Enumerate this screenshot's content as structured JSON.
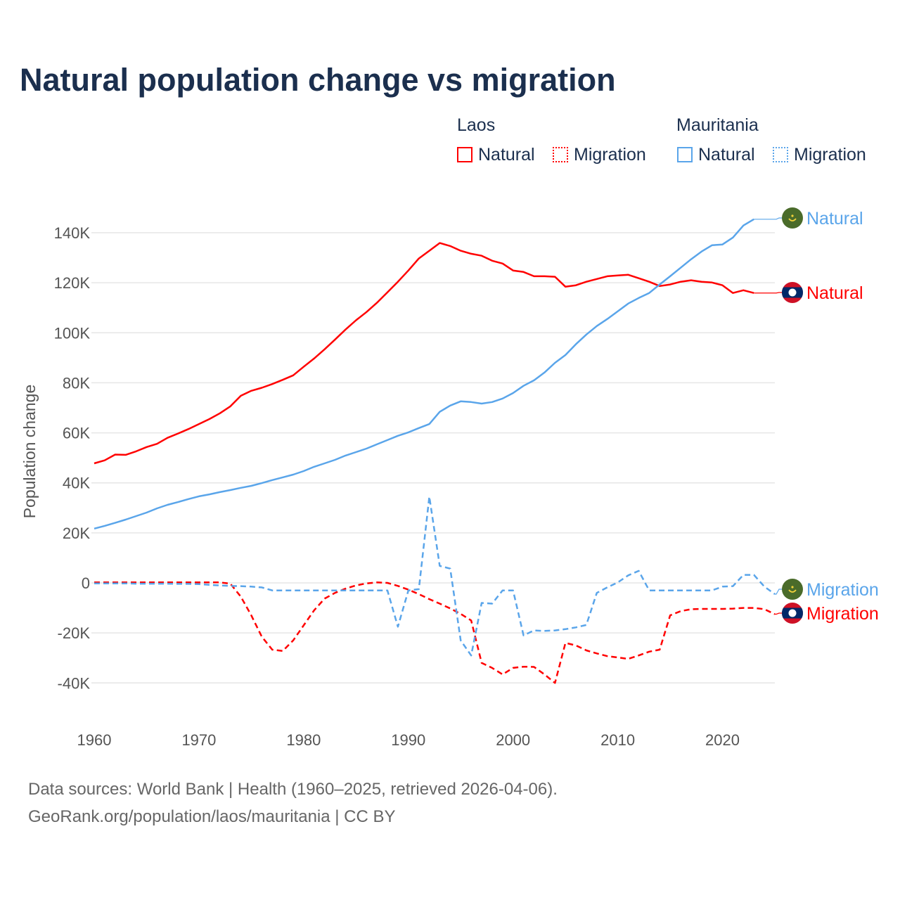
{
  "title": "Natural population change vs migration",
  "legend": {
    "groups": [
      {
        "country": "Laos",
        "color": "#ff0000",
        "items": [
          "Natural",
          "Migration"
        ]
      },
      {
        "country": "Mauritania",
        "color": "#5aa5ea",
        "items": [
          "Natural",
          "Migration"
        ]
      }
    ]
  },
  "footer": {
    "line1": "Data sources: World Bank | Health (1960–2025, retrieved 2026-04-06).",
    "line2": "GeoRank.org/population/laos/mauritania | CC BY"
  },
  "chart_data": {
    "type": "line",
    "title": "Natural population change vs migration",
    "xlabel": "",
    "ylabel": "Population change",
    "xlim": [
      1960,
      2025
    ],
    "ylim": [
      -40000,
      140000
    ],
    "x_ticks": [
      "1960",
      "1970",
      "1980",
      "1990",
      "2000",
      "2010",
      "2020"
    ],
    "y_ticks": [
      "140K",
      "120K",
      "100K",
      "80K",
      "60K",
      "40K",
      "20K",
      "0",
      "-20K",
      "-40K"
    ],
    "y_tick_values": [
      140000,
      120000,
      100000,
      80000,
      60000,
      40000,
      20000,
      0,
      -20000,
      -40000
    ],
    "grid": true,
    "series": [
      {
        "name": "Laos Natural",
        "country": "Laos",
        "kind": "Natural",
        "color": "#ff0000",
        "dash": false,
        "end_label": "Natural",
        "start": 1960,
        "values": [
          47800,
          49000,
          51300,
          51200,
          52600,
          54300,
          55600,
          58000,
          59700,
          61500,
          63500,
          65500,
          67800,
          70600,
          74800,
          76800,
          78000,
          79500,
          81200,
          83000,
          86400,
          89700,
          93400,
          97300,
          101300,
          105000,
          108300,
          112000,
          116200,
          120400,
          124900,
          129700,
          132800,
          135900,
          134700,
          132800,
          131600,
          130800,
          128800,
          127700,
          124900,
          124300,
          122600,
          122600,
          122400,
          118400,
          119000,
          120400,
          121500,
          122600,
          122900,
          123200,
          121800,
          120400,
          118700,
          119300,
          120400,
          121000,
          120400,
          120100,
          119000,
          115900,
          117000,
          115900
        ]
      },
      {
        "name": "Laos Migration",
        "country": "Laos",
        "kind": "Migration",
        "color": "#ff0000",
        "dash": true,
        "end_label": "Migration",
        "start": 1960,
        "values": [
          200,
          200,
          200,
          200,
          200,
          200,
          200,
          200,
          200,
          200,
          200,
          200,
          200,
          -300,
          -5500,
          -13000,
          -21500,
          -26700,
          -27200,
          -23000,
          -17000,
          -11000,
          -6300,
          -4000,
          -2300,
          -1000,
          -200,
          200,
          0,
          -1200,
          -2700,
          -4500,
          -6500,
          -8300,
          -10200,
          -12400,
          -15000,
          -32000,
          -34000,
          -36600,
          -34000,
          -33500,
          -33600,
          -36600,
          -40000,
          -24000,
          -25000,
          -27000,
          -28200,
          -29300,
          -29800,
          -30400,
          -29000,
          -27500,
          -26700,
          -13000,
          -11300,
          -10500,
          -10400,
          -10400,
          -10400,
          -10300,
          -10000,
          -10000,
          -10500,
          -12500
        ]
      },
      {
        "name": "Mauritania Natural",
        "country": "Mauritania",
        "kind": "Natural",
        "color": "#5aa5ea",
        "dash": false,
        "end_label": "Natural",
        "start": 1960,
        "values": [
          21700,
          22800,
          24000,
          25300,
          26700,
          28100,
          29800,
          31200,
          32300,
          33500,
          34600,
          35400,
          36300,
          37100,
          38000,
          38800,
          39900,
          41100,
          42200,
          43300,
          44700,
          46400,
          47800,
          49200,
          50900,
          52300,
          53700,
          55400,
          57100,
          58800,
          60200,
          61900,
          63500,
          68400,
          70900,
          72600,
          72300,
          71700,
          72300,
          73700,
          75900,
          78800,
          81000,
          84100,
          88000,
          91100,
          95400,
          99300,
          102700,
          105500,
          108600,
          111700,
          113900,
          115900,
          119300,
          122600,
          126000,
          129400,
          132500,
          135000,
          135300,
          138100,
          142900,
          145400
        ]
      },
      {
        "name": "Mauritania Migration",
        "country": "Mauritania",
        "kind": "Migration",
        "color": "#5aa5ea",
        "dash": true,
        "end_label": "Migration",
        "start": 1960,
        "values": [
          -200,
          -200,
          -200,
          -200,
          -300,
          -300,
          -300,
          -300,
          -400,
          -400,
          -500,
          -800,
          -1000,
          -1200,
          -1300,
          -1500,
          -1800,
          -3000,
          -3000,
          -3000,
          -3000,
          -3000,
          -3000,
          -3000,
          -3000,
          -3000,
          -3000,
          -3000,
          -3000,
          -17500,
          -3000,
          -2500,
          34500,
          6800,
          5700,
          -23000,
          -29000,
          -8000,
          -8300,
          -3000,
          -3000,
          -21000,
          -19000,
          -19200,
          -19000,
          -18500,
          -17800,
          -16800,
          -4000,
          -1800,
          200,
          3000,
          4800,
          -3000,
          -3000,
          -3000,
          -3000,
          -3000,
          -3000,
          -3000,
          -1500,
          -1300,
          3200,
          3200,
          -1500,
          -4500
        ]
      }
    ]
  }
}
